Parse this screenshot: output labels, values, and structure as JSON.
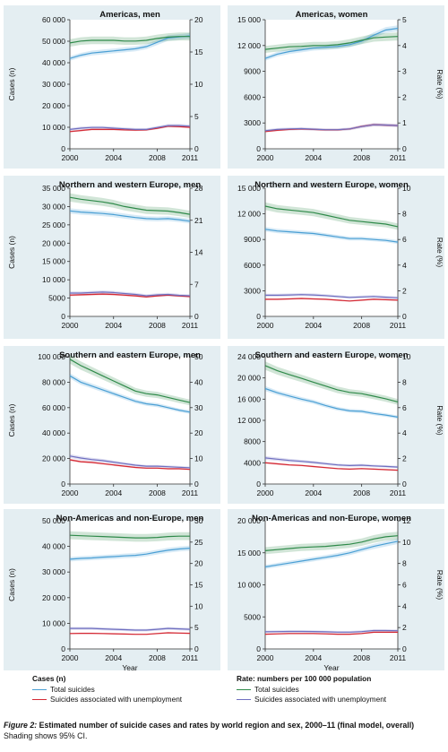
{
  "colors": {
    "total": "#4a9fd4",
    "unemp": "#d42a35",
    "rate_total": "#2f8a4a",
    "rate_unemp": "#6f6fc0",
    "panel_bg": "#e4eef2"
  },
  "legend": {
    "cases_heading": "Cases (n)",
    "rate_heading": "Rate: numbers per 100 000 population",
    "items": [
      {
        "label": "Total suicides",
        "color": "#4a9fd4"
      },
      {
        "label": "Suicides associated with unemployment",
        "color": "#d42a35"
      },
      {
        "label": "Total suicides",
        "color": "#2f8a4a"
      },
      {
        "label": "Suicides associated with unemployment",
        "color": "#6f6fc0"
      }
    ]
  },
  "caption": {
    "label": "Figure 2:",
    "title": " Estimated number of suicide cases and rates by world region and sex, 2000–11 (final model, overall)",
    "note": "Shading shows 95% CI."
  },
  "chart_data": [
    {
      "type": "line",
      "title": "Americas, men",
      "x": [
        2000,
        2001,
        2002,
        2003,
        2004,
        2005,
        2006,
        2007,
        2008,
        2009,
        2010,
        2011
      ],
      "xticks": [
        "2000",
        "2004",
        "2008",
        "2011"
      ],
      "xticks_val": [
        2000,
        2004,
        2008,
        2011
      ],
      "xlabel": "",
      "ylabel_left": "Cases (n)",
      "ylabel_right": "",
      "ylim_left": [
        0,
        60000
      ],
      "yticks_left": [
        "0",
        "10 000",
        "20 000",
        "30 000",
        "40 000",
        "50 000",
        "60 000"
      ],
      "ylim_right": [
        0,
        20
      ],
      "yticks_right": [
        "0",
        "5",
        "10",
        "15",
        "20"
      ],
      "series": [
        {
          "key": "total",
          "axis": "left",
          "values": [
            42000,
            43500,
            44500,
            45000,
            45500,
            46000,
            46500,
            47500,
            49500,
            51500,
            52000,
            52500
          ]
        },
        {
          "key": "unemp",
          "axis": "left",
          "values": [
            8000,
            8500,
            9000,
            9000,
            9000,
            8800,
            8700,
            8800,
            9500,
            10500,
            10300,
            10000
          ]
        },
        {
          "key": "rate_total",
          "axis": "right",
          "values": [
            16.4,
            16.7,
            16.8,
            16.8,
            16.8,
            16.7,
            16.7,
            16.8,
            17.1,
            17.3,
            17.4,
            17.4
          ]
        },
        {
          "key": "rate_unemp",
          "axis": "right",
          "values": [
            3.0,
            3.2,
            3.3,
            3.3,
            3.2,
            3.1,
            3.0,
            3.0,
            3.3,
            3.6,
            3.6,
            3.5
          ]
        }
      ]
    },
    {
      "type": "line",
      "title": "Americas, women",
      "x": [
        2000,
        2001,
        2002,
        2003,
        2004,
        2005,
        2006,
        2007,
        2008,
        2009,
        2010,
        2011
      ],
      "xticks": [
        "2000",
        "2004",
        "2008",
        "2011"
      ],
      "xticks_val": [
        2000,
        2004,
        2008,
        2011
      ],
      "xlabel": "",
      "ylabel_left": "",
      "ylabel_right": "Rate (%)",
      "ylim_left": [
        0,
        15000
      ],
      "yticks_left": [
        "0",
        "3000",
        "6000",
        "9000",
        "12 000",
        "15 000"
      ],
      "ylim_right": [
        0,
        5
      ],
      "yticks_right": [
        "0",
        "1",
        "2",
        "3",
        "4",
        "5"
      ],
      "series": [
        {
          "key": "total",
          "axis": "left",
          "values": [
            10500,
            11000,
            11300,
            11500,
            11700,
            11800,
            11900,
            12100,
            12500,
            13200,
            13800,
            14000
          ]
        },
        {
          "key": "unemp",
          "axis": "left",
          "values": [
            2000,
            2150,
            2250,
            2300,
            2250,
            2200,
            2200,
            2300,
            2600,
            2800,
            2750,
            2700
          ]
        },
        {
          "key": "rate_total",
          "axis": "right",
          "values": [
            3.85,
            3.9,
            3.95,
            3.97,
            4.0,
            4.0,
            4.03,
            4.1,
            4.2,
            4.3,
            4.33,
            4.35
          ]
        },
        {
          "key": "rate_unemp",
          "axis": "right",
          "values": [
            0.7,
            0.75,
            0.77,
            0.78,
            0.76,
            0.74,
            0.74,
            0.77,
            0.86,
            0.93,
            0.92,
            0.9
          ]
        }
      ]
    },
    {
      "type": "line",
      "title": "Northern and western Europe, men",
      "x": [
        2000,
        2001,
        2002,
        2003,
        2004,
        2005,
        2006,
        2007,
        2008,
        2009,
        2010,
        2011
      ],
      "xticks": [
        "2000",
        "2004",
        "2008",
        "2011"
      ],
      "xticks_val": [
        2000,
        2004,
        2008,
        2011
      ],
      "xlabel": "",
      "ylabel_left": "Cases (n)",
      "ylabel_right": "",
      "ylim_left": [
        0,
        35000
      ],
      "yticks_left": [
        "0",
        "5000",
        "10 000",
        "15 000",
        "20 000",
        "25 000",
        "30 000",
        "35 000"
      ],
      "ylim_right": [
        0,
        28
      ],
      "yticks_right": [
        "0",
        "7",
        "14",
        "21",
        "28"
      ],
      "series": [
        {
          "key": "total",
          "axis": "left",
          "values": [
            28800,
            28500,
            28300,
            28100,
            27800,
            27400,
            27000,
            26700,
            26600,
            26700,
            26400,
            26000
          ]
        },
        {
          "key": "unemp",
          "axis": "left",
          "values": [
            5800,
            5900,
            6000,
            6100,
            6000,
            5800,
            5600,
            5300,
            5600,
            5800,
            5600,
            5400
          ]
        },
        {
          "key": "rate_total",
          "axis": "right",
          "values": [
            26.0,
            25.6,
            25.3,
            25.0,
            24.6,
            24.0,
            23.6,
            23.2,
            23.1,
            23.0,
            22.7,
            22.3
          ]
        },
        {
          "key": "rate_unemp",
          "axis": "right",
          "values": [
            5.1,
            5.1,
            5.2,
            5.3,
            5.2,
            5.0,
            4.8,
            4.5,
            4.7,
            4.8,
            4.6,
            4.5
          ]
        }
      ]
    },
    {
      "type": "line",
      "title": "Northern and western Europe, women",
      "x": [
        2000,
        2001,
        2002,
        2003,
        2004,
        2005,
        2006,
        2007,
        2008,
        2009,
        2010,
        2011
      ],
      "xticks": [
        "2000",
        "2004",
        "2008",
        "2011"
      ],
      "xticks_val": [
        2000,
        2004,
        2008,
        2011
      ],
      "xlabel": "",
      "ylabel_left": "",
      "ylabel_right": "Rate (%)",
      "ylim_left": [
        0,
        15000
      ],
      "yticks_left": [
        "0",
        "3000",
        "6000",
        "9000",
        "12 000",
        "15 000"
      ],
      "ylim_right": [
        0,
        10
      ],
      "yticks_right": [
        "0",
        "2",
        "4",
        "6",
        "8",
        "10"
      ],
      "series": [
        {
          "key": "total",
          "axis": "left",
          "values": [
            10200,
            10000,
            9900,
            9800,
            9700,
            9500,
            9300,
            9100,
            9100,
            9000,
            8900,
            8700
          ]
        },
        {
          "key": "unemp",
          "axis": "left",
          "values": [
            2000,
            2000,
            2050,
            2100,
            2050,
            2000,
            1900,
            1800,
            1900,
            2000,
            1950,
            1900
          ]
        },
        {
          "key": "rate_total",
          "axis": "right",
          "values": [
            8.6,
            8.4,
            8.3,
            8.2,
            8.1,
            7.9,
            7.7,
            7.5,
            7.4,
            7.3,
            7.2,
            7.0
          ]
        },
        {
          "key": "rate_unemp",
          "axis": "right",
          "values": [
            1.65,
            1.65,
            1.67,
            1.7,
            1.67,
            1.62,
            1.55,
            1.48,
            1.52,
            1.55,
            1.5,
            1.45
          ]
        }
      ]
    },
    {
      "type": "line",
      "title": "Southern and eastern Europe, men",
      "x": [
        2000,
        2001,
        2002,
        2003,
        2004,
        2005,
        2006,
        2007,
        2008,
        2009,
        2010,
        2011
      ],
      "xticks": [
        "2000",
        "2004",
        "2008",
        "2011"
      ],
      "xticks_val": [
        2000,
        2004,
        2008,
        2011
      ],
      "xlabel": "",
      "ylabel_left": "Cases (n)",
      "ylabel_right": "",
      "ylim_left": [
        0,
        100000
      ],
      "yticks_left": [
        "0",
        "20 000",
        "40 000",
        "60 000",
        "80 000",
        "100 000"
      ],
      "ylim_right": [
        0,
        50
      ],
      "yticks_right": [
        "0",
        "10",
        "20",
        "30",
        "40",
        "50"
      ],
      "series": [
        {
          "key": "total",
          "axis": "left",
          "values": [
            85000,
            80000,
            77000,
            74000,
            71000,
            68000,
            65000,
            63000,
            62000,
            60000,
            58000,
            56500
          ]
        },
        {
          "key": "unemp",
          "axis": "left",
          "values": [
            19000,
            17500,
            17000,
            16000,
            15000,
            14000,
            13000,
            12500,
            12500,
            12000,
            12000,
            11500
          ]
        },
        {
          "key": "rate_total",
          "axis": "right",
          "values": [
            49,
            46.5,
            44.5,
            42.5,
            40.5,
            38.5,
            36.5,
            35.5,
            35,
            34,
            33,
            32
          ]
        },
        {
          "key": "rate_unemp",
          "axis": "right",
          "values": [
            11,
            10.2,
            9.6,
            9.2,
            8.6,
            8.0,
            7.4,
            7.0,
            7.0,
            6.8,
            6.6,
            6.4
          ]
        }
      ]
    },
    {
      "type": "line",
      "title": "Southern and eastern Europe, women",
      "x": [
        2000,
        2001,
        2002,
        2003,
        2004,
        2005,
        2006,
        2007,
        2008,
        2009,
        2010,
        2011
      ],
      "xticks": [
        "2000",
        "2004",
        "2008",
        "2011"
      ],
      "xticks_val": [
        2000,
        2004,
        2008,
        2011
      ],
      "xlabel": "",
      "ylabel_left": "",
      "ylabel_right": "Rate (%)",
      "ylim_left": [
        0,
        24000
      ],
      "yticks_left": [
        "0",
        "4000",
        "8000",
        "12 000",
        "16 000",
        "20 000",
        "24 000"
      ],
      "ylim_right": [
        0,
        10
      ],
      "yticks_right": [
        "0",
        "2",
        "4",
        "6",
        "8",
        "10"
      ],
      "series": [
        {
          "key": "total",
          "axis": "left",
          "values": [
            18000,
            17200,
            16600,
            16000,
            15500,
            14800,
            14200,
            13800,
            13700,
            13300,
            13000,
            12600
          ]
        },
        {
          "key": "unemp",
          "axis": "left",
          "values": [
            4000,
            3800,
            3600,
            3500,
            3300,
            3100,
            2900,
            2800,
            2900,
            2800,
            2700,
            2600
          ]
        },
        {
          "key": "rate_total",
          "axis": "right",
          "values": [
            9.3,
            8.9,
            8.6,
            8.3,
            8.0,
            7.7,
            7.4,
            7.2,
            7.1,
            6.9,
            6.7,
            6.45
          ]
        },
        {
          "key": "rate_unemp",
          "axis": "right",
          "values": [
            2.05,
            1.95,
            1.85,
            1.78,
            1.7,
            1.6,
            1.5,
            1.45,
            1.48,
            1.42,
            1.38,
            1.33
          ]
        }
      ]
    },
    {
      "type": "line",
      "title": "Non-Americas and non-Europe, men",
      "x": [
        2000,
        2001,
        2002,
        2003,
        2004,
        2005,
        2006,
        2007,
        2008,
        2009,
        2010,
        2011
      ],
      "xticks": [
        "2000",
        "2004",
        "2008",
        "2011"
      ],
      "xticks_val": [
        2000,
        2004,
        2008,
        2011
      ],
      "xlabel": "Year",
      "ylabel_left": "Cases (n)",
      "ylabel_right": "",
      "ylim_left": [
        0,
        50000
      ],
      "yticks_left": [
        "0",
        "10 000",
        "20 000",
        "30 000",
        "40 000",
        "50 000"
      ],
      "ylim_right": [
        0,
        30
      ],
      "yticks_right": [
        "0",
        "5",
        "10",
        "15",
        "20",
        "25",
        "30"
      ],
      "series": [
        {
          "key": "total",
          "axis": "left",
          "values": [
            35000,
            35300,
            35500,
            35800,
            36000,
            36300,
            36500,
            37000,
            37800,
            38500,
            39000,
            39300
          ]
        },
        {
          "key": "unemp",
          "axis": "left",
          "values": [
            6000,
            6100,
            6100,
            6000,
            5900,
            5800,
            5700,
            5700,
            6000,
            6300,
            6200,
            6100
          ]
        },
        {
          "key": "rate_total",
          "axis": "right",
          "values": [
            26.6,
            26.5,
            26.4,
            26.3,
            26.2,
            26.1,
            26.0,
            26.0,
            26.1,
            26.3,
            26.4,
            26.4
          ]
        },
        {
          "key": "rate_unemp",
          "axis": "right",
          "values": [
            4.8,
            4.8,
            4.8,
            4.7,
            4.6,
            4.5,
            4.4,
            4.4,
            4.6,
            4.8,
            4.7,
            4.6
          ]
        }
      ]
    },
    {
      "type": "line",
      "title": "Non-Americas and non-Europe, women",
      "x": [
        2000,
        2001,
        2002,
        2003,
        2004,
        2005,
        2006,
        2007,
        2008,
        2009,
        2010,
        2011
      ],
      "xticks": [
        "2000",
        "2004",
        "2008",
        "2011"
      ],
      "xticks_val": [
        2000,
        2004,
        2008,
        2011
      ],
      "xlabel": "Year",
      "ylabel_left": "",
      "ylabel_right": "Rate (%)",
      "ylim_left": [
        0,
        20000
      ],
      "yticks_left": [
        "0",
        "5000",
        "10 000",
        "15 000",
        "20 000"
      ],
      "ylim_right": [
        0,
        12
      ],
      "yticks_right": [
        "0",
        "2",
        "4",
        "6",
        "8",
        "10",
        "12"
      ],
      "series": [
        {
          "key": "total",
          "axis": "left",
          "values": [
            12800,
            13100,
            13400,
            13700,
            14000,
            14300,
            14600,
            15000,
            15500,
            16000,
            16400,
            16800
          ]
        },
        {
          "key": "unemp",
          "axis": "left",
          "values": [
            2300,
            2350,
            2400,
            2400,
            2400,
            2350,
            2300,
            2300,
            2400,
            2600,
            2600,
            2600
          ]
        },
        {
          "key": "rate_total",
          "axis": "right",
          "values": [
            9.2,
            9.3,
            9.4,
            9.5,
            9.55,
            9.6,
            9.7,
            9.8,
            10.0,
            10.3,
            10.5,
            10.6
          ]
        },
        {
          "key": "rate_unemp",
          "axis": "right",
          "values": [
            1.6,
            1.62,
            1.64,
            1.64,
            1.63,
            1.6,
            1.57,
            1.57,
            1.62,
            1.72,
            1.72,
            1.7
          ]
        }
      ]
    }
  ]
}
